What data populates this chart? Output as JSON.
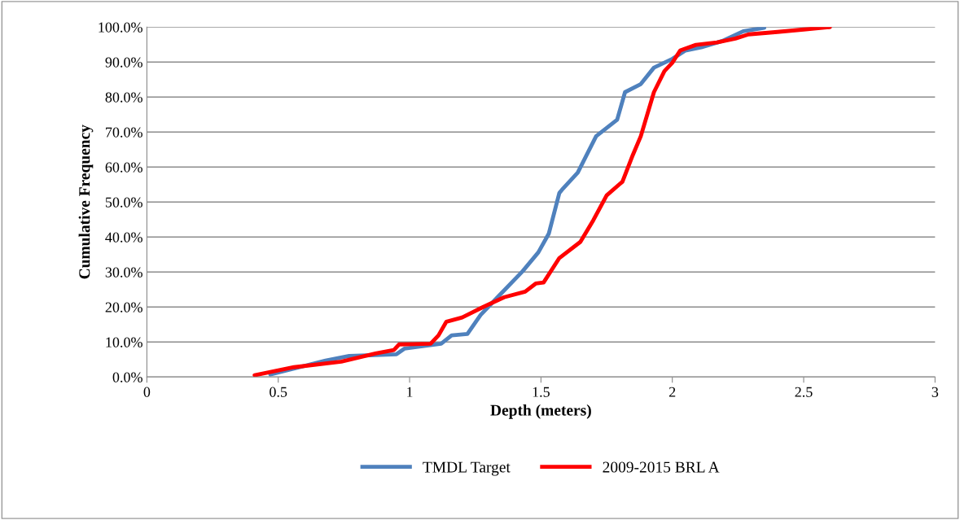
{
  "chart_data": {
    "type": "line",
    "xlabel": "Depth (meters)",
    "ylabel": "Cumulative Frequency",
    "xlim": [
      0,
      3
    ],
    "xticks": [
      0,
      0.5,
      1,
      1.5,
      2,
      2.5,
      3
    ],
    "ylim": [
      0,
      100
    ],
    "yticks": [
      {
        "value": 0,
        "label": "0.0%"
      },
      {
        "value": 10,
        "label": "10.0%"
      },
      {
        "value": 20,
        "label": "20.0%"
      },
      {
        "value": 30,
        "label": "30.0%"
      },
      {
        "value": 40,
        "label": "40.0%"
      },
      {
        "value": 50,
        "label": "50.0%"
      },
      {
        "value": 60,
        "label": "60.0%"
      },
      {
        "value": 70,
        "label": "70.0%"
      },
      {
        "value": 80,
        "label": "80.0%"
      },
      {
        "value": 90,
        "label": "90.0%"
      },
      {
        "value": 100,
        "label": "100.0%"
      }
    ],
    "grid": "y",
    "legend": "bottom",
    "marker": "none",
    "line_style": "solid",
    "series": [
      {
        "name": "TMDL Target",
        "color": "#4f81bd",
        "x": [
          0.47,
          0.68,
          0.77,
          0.95,
          0.98,
          1.12,
          1.16,
          1.22,
          1.27,
          1.34,
          1.43,
          1.49,
          1.53,
          1.57,
          1.58,
          1.64,
          1.71,
          1.79,
          1.82,
          1.88,
          1.93,
          2.0,
          2.05,
          2.11,
          2.19,
          2.27,
          2.35
        ],
        "values": [
          0.7,
          4.7,
          6.0,
          6.5,
          8.1,
          9.5,
          11.9,
          12.3,
          17.7,
          23.2,
          30.2,
          35.6,
          41,
          52.6,
          53.5,
          58.4,
          68.8,
          73.5,
          81.4,
          83.7,
          88.4,
          90.9,
          93.3,
          94.2,
          96,
          98.8,
          99.8
        ]
      },
      {
        "name": "2009-2015 BRL A",
        "color": "#ff0000",
        "x": [
          0.41,
          0.56,
          0.74,
          0.87,
          0.94,
          0.96,
          1.08,
          1.11,
          1.14,
          1.2,
          1.28,
          1.36,
          1.44,
          1.48,
          1.51,
          1.57,
          1.65,
          1.7,
          1.75,
          1.81,
          1.85,
          1.88,
          1.93,
          1.97,
          2.0,
          2.03,
          2.09,
          2.17,
          2.24,
          2.29,
          2.4,
          2.5,
          2.6
        ],
        "values": [
          0.5,
          2.8,
          4.4,
          6.7,
          7.7,
          9.3,
          9.5,
          11.9,
          15.8,
          17,
          20,
          22.8,
          24.4,
          26.7,
          27,
          34,
          38.6,
          44.9,
          51.9,
          55.8,
          63.5,
          68.8,
          81.4,
          87.4,
          89.8,
          93.3,
          94.9,
          95.6,
          96.7,
          97.9,
          98.6,
          99.3,
          100
        ]
      }
    ]
  }
}
